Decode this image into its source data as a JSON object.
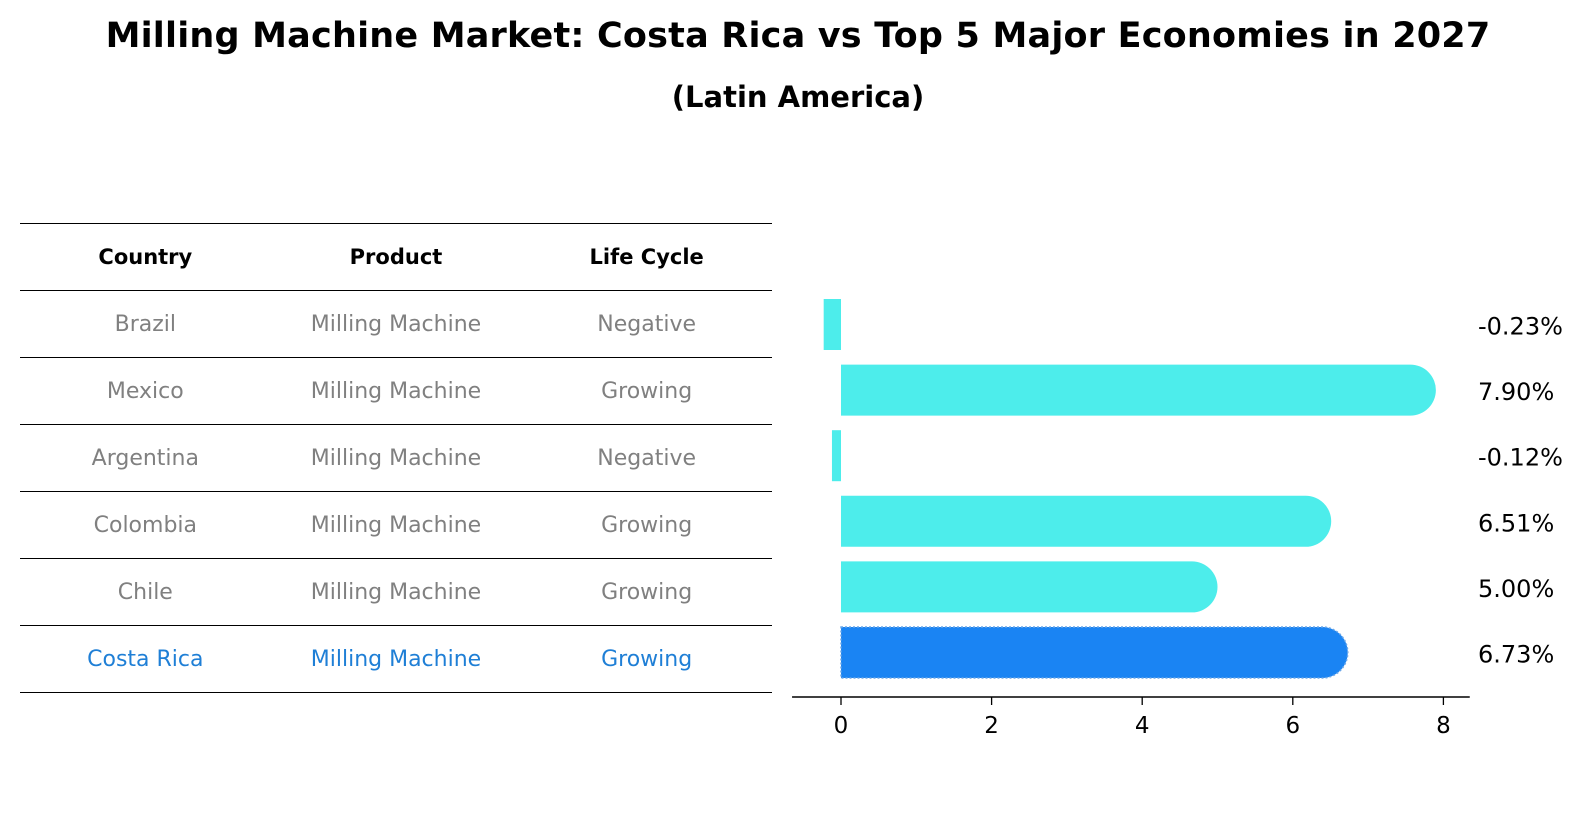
{
  "title": "Milling Machine Market: Costa Rica vs Top 5 Major Economies in 2027",
  "subtitle": "(Latin America)",
  "table": {
    "headers": [
      "Country",
      "Product",
      "Life Cycle"
    ],
    "rows": [
      {
        "country": "Brazil",
        "product": "Milling Machine",
        "life_cycle": "Negative"
      },
      {
        "country": "Mexico",
        "product": "Milling Machine",
        "life_cycle": "Growing"
      },
      {
        "country": "Argentina",
        "product": "Milling Machine",
        "life_cycle": "Negative"
      },
      {
        "country": "Colombia",
        "product": "Milling Machine",
        "life_cycle": "Growing"
      },
      {
        "country": "Chile",
        "product": "Milling Machine",
        "life_cycle": "Growing"
      },
      {
        "country": "Costa Rica",
        "product": "Milling Machine",
        "life_cycle": "Growing",
        "highlight": true
      }
    ]
  },
  "chart_data": {
    "type": "bar",
    "orientation": "horizontal",
    "categories": [
      "Brazil",
      "Mexico",
      "Argentina",
      "Colombia",
      "Chile",
      "Costa Rica"
    ],
    "values": [
      -0.23,
      7.9,
      -0.12,
      6.51,
      5.0,
      6.73
    ],
    "value_labels": [
      "-0.23%",
      "7.90%",
      "-0.12%",
      "6.51%",
      "5.00%",
      "6.73%"
    ],
    "xticks": [
      0,
      2,
      4,
      6,
      8
    ],
    "xlim": [
      -0.65,
      8.35
    ],
    "highlight_index": 5,
    "colors": {
      "default": "#4dedeb",
      "highlight": "#1a84f3"
    }
  }
}
